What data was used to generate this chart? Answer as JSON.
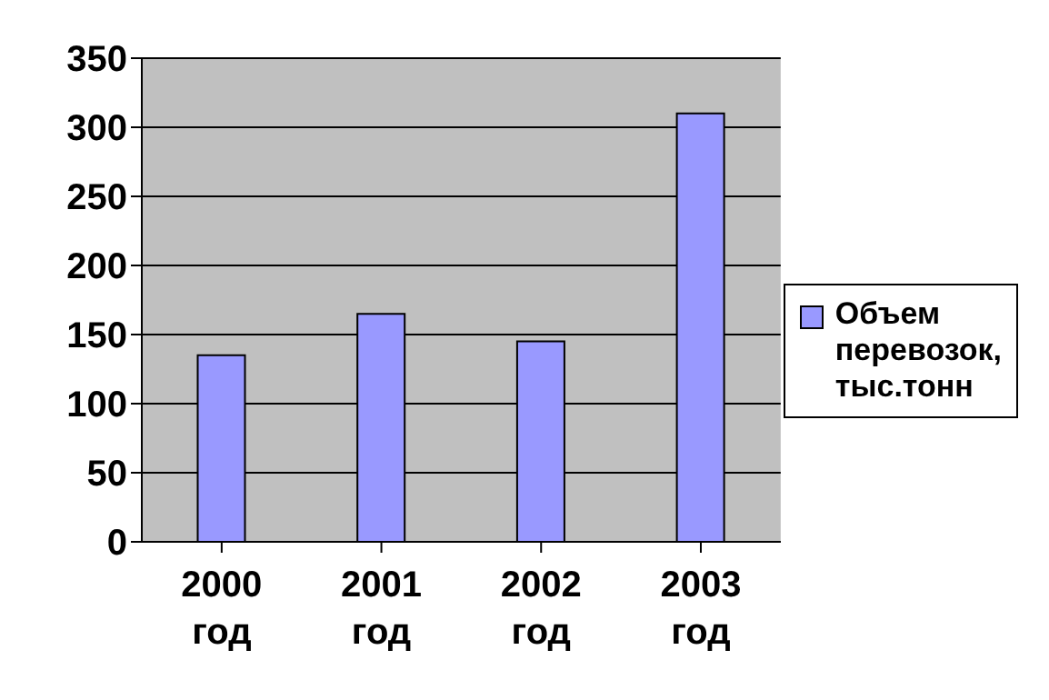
{
  "chart_data": {
    "type": "bar",
    "categories": [
      "2000 год",
      "2001 год",
      "2002 год",
      "2003 год"
    ],
    "series": [
      {
        "name": "Объем перевозок, тыс.тонн",
        "color": "#9999ff",
        "values": [
          135,
          165,
          145,
          310
        ]
      }
    ],
    "ylim": [
      0,
      350
    ],
    "yticks": [
      0,
      50,
      100,
      150,
      200,
      250,
      300,
      350
    ],
    "grid": "y",
    "legend": "right"
  }
}
